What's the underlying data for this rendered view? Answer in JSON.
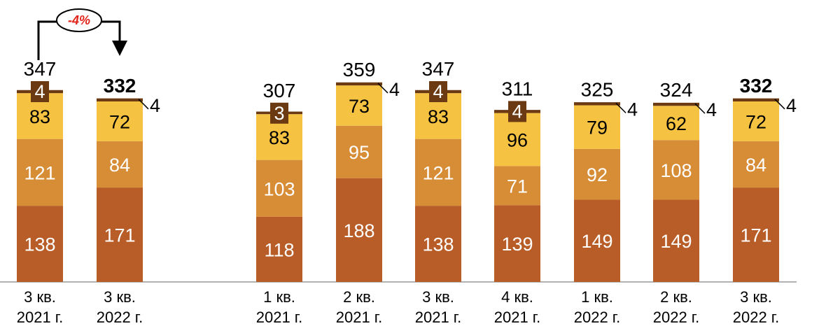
{
  "chart_data": {
    "type": "bar",
    "stacked": true,
    "ylim": [
      0,
      360
    ],
    "colors": {
      "seg1": "#b85d27",
      "seg2": "#d78c36",
      "seg3": "#f5c242",
      "seg4": "#6b3a12"
    },
    "comparison": {
      "categories": [
        [
          "3 кв.",
          "2021 г."
        ],
        [
          "3 кв.",
          "2022 г."
        ]
      ],
      "totals": [
        "347",
        "332"
      ],
      "total_bold": [
        false,
        true
      ],
      "series": [
        {
          "values": [
            138,
            171
          ]
        },
        {
          "values": [
            121,
            84
          ]
        },
        {
          "values": [
            83,
            72
          ]
        },
        {
          "values": [
            4,
            4
          ]
        }
      ],
      "delta_label": "-4%"
    },
    "timeline": {
      "categories": [
        [
          "1 кв.",
          "2021 г."
        ],
        [
          "2 кв.",
          "2021 г."
        ],
        [
          "3 кв.",
          "2021 г."
        ],
        [
          "4 кв.",
          "2021 г."
        ],
        [
          "1 кв.",
          "2022 г."
        ],
        [
          "2 кв.",
          "2022 г."
        ],
        [
          "3 кв.",
          "2022 г."
        ]
      ],
      "totals": [
        "307",
        "359",
        "347",
        "311",
        "325",
        "324",
        "332"
      ],
      "total_bold": [
        false,
        false,
        false,
        false,
        false,
        false,
        true
      ],
      "series": [
        {
          "values": [
            118,
            188,
            138,
            139,
            149,
            149,
            171
          ]
        },
        {
          "values": [
            103,
            95,
            121,
            71,
            92,
            108,
            84
          ]
        },
        {
          "values": [
            83,
            73,
            83,
            96,
            79,
            62,
            72
          ]
        },
        {
          "values": [
            3,
            4,
            4,
            4,
            4,
            4,
            4
          ]
        }
      ]
    }
  }
}
